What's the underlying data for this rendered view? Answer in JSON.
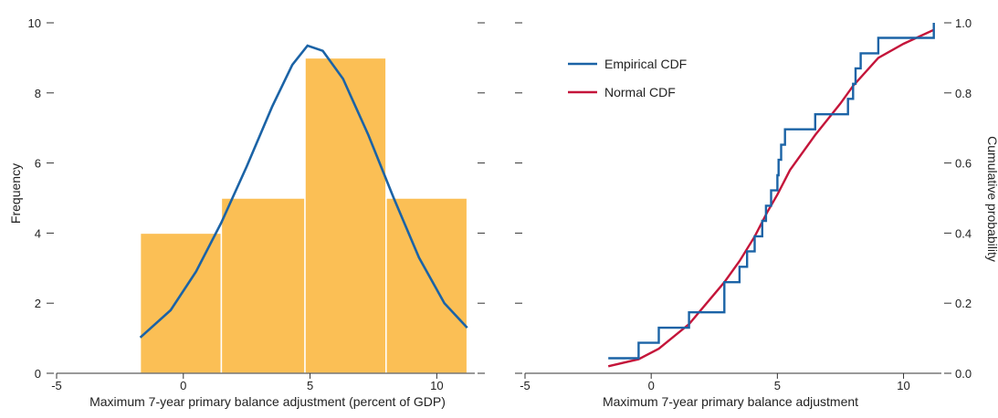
{
  "chart_data": [
    {
      "type": "bar",
      "subtype": "histogram",
      "bins": [
        {
          "x0": -1.7,
          "x1": 1.5,
          "value": 4
        },
        {
          "x0": 1.5,
          "x1": 4.8,
          "value": 5
        },
        {
          "x0": 4.8,
          "x1": 8.0,
          "value": 9
        },
        {
          "x0": 8.0,
          "x1": 11.2,
          "value": 5
        }
      ],
      "overlay_line": {
        "x": [
          -1.7,
          -0.5,
          0.5,
          1.5,
          2.5,
          3.5,
          4.3,
          4.9,
          5.5,
          6.3,
          7.3,
          8.3,
          9.3,
          10.3,
          11.2
        ],
        "y": [
          1.02,
          1.8,
          2.9,
          4.3,
          5.9,
          7.6,
          8.8,
          9.35,
          9.2,
          8.4,
          6.8,
          5.0,
          3.3,
          2.0,
          1.3
        ]
      },
      "xlabel": "Maximum 7-year primary balance adjustment (percent of GDP)",
      "ylabel": "Frequency",
      "xlim": [
        -5,
        11.5
      ],
      "ylim": [
        0,
        10
      ],
      "xticks": [
        -5,
        0,
        5,
        10
      ],
      "yticks": [
        0,
        2,
        4,
        6,
        8,
        10
      ],
      "colors": {
        "bars": "#FBBF55",
        "line": "#1B63A6"
      }
    },
    {
      "type": "line",
      "series": [
        {
          "name": "Empirical CDF",
          "step": true,
          "x": [
            -1.7,
            -0.5,
            0.3,
            1.5,
            2.9,
            3.5,
            3.8,
            4.1,
            4.4,
            4.55,
            4.75,
            5.0,
            5.05,
            5.15,
            5.3,
            5.5,
            6.5,
            7.5,
            7.8,
            8.0,
            8.1,
            8.3,
            9.0,
            10.0,
            11.2
          ],
          "y": [
            0.043,
            0.087,
            0.13,
            0.174,
            0.26,
            0.304,
            0.348,
            0.391,
            0.435,
            0.478,
            0.522,
            0.565,
            0.609,
            0.652,
            0.696,
            0.696,
            0.739,
            0.739,
            0.783,
            0.826,
            0.87,
            0.913,
            0.957,
            0.957,
            1.0
          ]
        },
        {
          "name": "Normal CDF",
          "step": false,
          "x": [
            -1.7,
            -0.5,
            0.3,
            1.5,
            2.9,
            3.5,
            4.1,
            4.6,
            5.0,
            5.5,
            6.5,
            7.5,
            8.0,
            9.0,
            10.0,
            11.2
          ],
          "y": [
            0.02,
            0.04,
            0.07,
            0.14,
            0.26,
            0.32,
            0.39,
            0.46,
            0.51,
            0.58,
            0.68,
            0.77,
            0.82,
            0.9,
            0.94,
            0.98
          ]
        }
      ],
      "xlabel": "Maximum 7-year primary balance adjustment",
      "ylabel": "Cumulative probability",
      "xlim": [
        -5,
        11.5
      ],
      "ylim": [
        0,
        1
      ],
      "xticks": [
        -5,
        0,
        5,
        10
      ],
      "yticks": [
        0.0,
        0.2,
        0.4,
        0.6,
        0.8,
        1.0
      ],
      "ytick_labels": [
        "0.0",
        "0.2",
        "0.4",
        "0.6",
        "0.8",
        "1.0"
      ],
      "legend": "top-left",
      "colors": {
        "Empirical CDF": "#1B63A6",
        "Normal CDF": "#C4153A"
      }
    }
  ]
}
